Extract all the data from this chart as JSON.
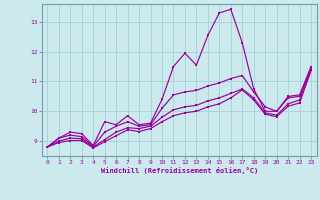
{
  "xlabel": "Windchill (Refroidissement éolien,°C)",
  "bg_color": "#cce9ed",
  "grid_color": "#aad4d9",
  "line_color": "#990099",
  "spine_color": "#7799aa",
  "xlim": [
    -0.5,
    23.5
  ],
  "ylim": [
    8.5,
    13.6
  ],
  "xticks": [
    0,
    1,
    2,
    3,
    4,
    5,
    6,
    7,
    8,
    9,
    10,
    11,
    12,
    13,
    14,
    15,
    16,
    17,
    18,
    19,
    20,
    21,
    22,
    23
  ],
  "yticks": [
    9,
    10,
    11,
    12,
    13
  ],
  "curves": [
    {
      "x": [
        0,
        1,
        2,
        3,
        4,
        5,
        6,
        7,
        8,
        9,
        10,
        11,
        12,
        13,
        14,
        15,
        16,
        17,
        18,
        19,
        20,
        21,
        22,
        23
      ],
      "y": [
        8.8,
        9.1,
        9.3,
        9.25,
        8.85,
        9.65,
        9.55,
        9.85,
        9.55,
        9.6,
        10.4,
        11.5,
        11.95,
        11.55,
        12.55,
        13.3,
        13.42,
        12.3,
        10.75,
        10.0,
        10.0,
        10.5,
        10.55,
        11.5
      ]
    },
    {
      "x": [
        0,
        1,
        2,
        3,
        4,
        5,
        6,
        7,
        8,
        9,
        10,
        11,
        12,
        13,
        14,
        15,
        16,
        17,
        18,
        19,
        20,
        21,
        22,
        23
      ],
      "y": [
        8.8,
        9.1,
        9.2,
        9.15,
        8.82,
        9.3,
        9.5,
        9.65,
        9.5,
        9.55,
        10.1,
        10.55,
        10.65,
        10.7,
        10.85,
        10.95,
        11.1,
        11.2,
        10.65,
        10.15,
        10.0,
        10.45,
        10.5,
        11.45
      ]
    },
    {
      "x": [
        0,
        1,
        2,
        3,
        4,
        5,
        6,
        7,
        8,
        9,
        10,
        11,
        12,
        13,
        14,
        15,
        16,
        17,
        18,
        19,
        20,
        21,
        22,
        23
      ],
      "y": [
        8.8,
        9.0,
        9.1,
        9.08,
        8.8,
        9.05,
        9.3,
        9.45,
        9.42,
        9.5,
        9.8,
        10.05,
        10.15,
        10.2,
        10.35,
        10.45,
        10.6,
        10.75,
        10.45,
        9.95,
        9.87,
        10.25,
        10.38,
        11.42
      ]
    },
    {
      "x": [
        0,
        1,
        2,
        3,
        4,
        5,
        6,
        7,
        8,
        9,
        10,
        11,
        12,
        13,
        14,
        15,
        16,
        17,
        18,
        19,
        20,
        21,
        22,
        23
      ],
      "y": [
        8.8,
        8.95,
        9.02,
        9.02,
        8.77,
        8.98,
        9.18,
        9.38,
        9.32,
        9.42,
        9.65,
        9.85,
        9.95,
        10.0,
        10.15,
        10.25,
        10.45,
        10.72,
        10.38,
        9.9,
        9.82,
        10.17,
        10.28,
        11.37
      ]
    }
  ]
}
